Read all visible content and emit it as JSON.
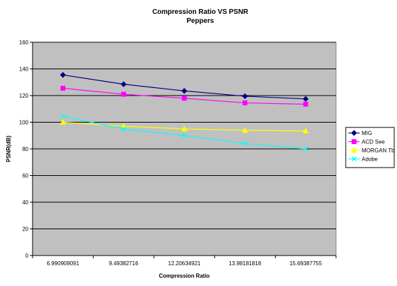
{
  "chart_data": {
    "type": "line",
    "title": "Compression Ratio VS PSNR",
    "subtitle": "Peppers",
    "xlabel": "Compression Ratio",
    "ylabel": "PSNR(dB)",
    "categories": [
      "6.990909091",
      "9.49382716",
      "12.20634921",
      "13.98181818",
      "15.69387755"
    ],
    "ylim": [
      0,
      160
    ],
    "yticks": [
      0,
      20,
      40,
      60,
      80,
      100,
      120,
      140,
      160
    ],
    "grid": "horizontal",
    "plot_background": "#c0c0c0",
    "legend_position": "right",
    "series": [
      {
        "name": "MIG",
        "color": "#000080",
        "marker": "diamond",
        "values": [
          135.5,
          128.5,
          123.5,
          119.5,
          117.5
        ]
      },
      {
        "name": "ACD See",
        "color": "#ff00ff",
        "marker": "square",
        "values": [
          125.5,
          121,
          118,
          114.5,
          113.5
        ]
      },
      {
        "name": "MORGAN Tb",
        "color": "#ffff00",
        "marker": "triangle",
        "values": [
          100,
          97,
          95,
          94,
          93.5
        ]
      },
      {
        "name": "Adobe",
        "color": "#00ffff",
        "marker": "x",
        "values": [
          104.5,
          95,
          90,
          84,
          80
        ]
      }
    ]
  }
}
